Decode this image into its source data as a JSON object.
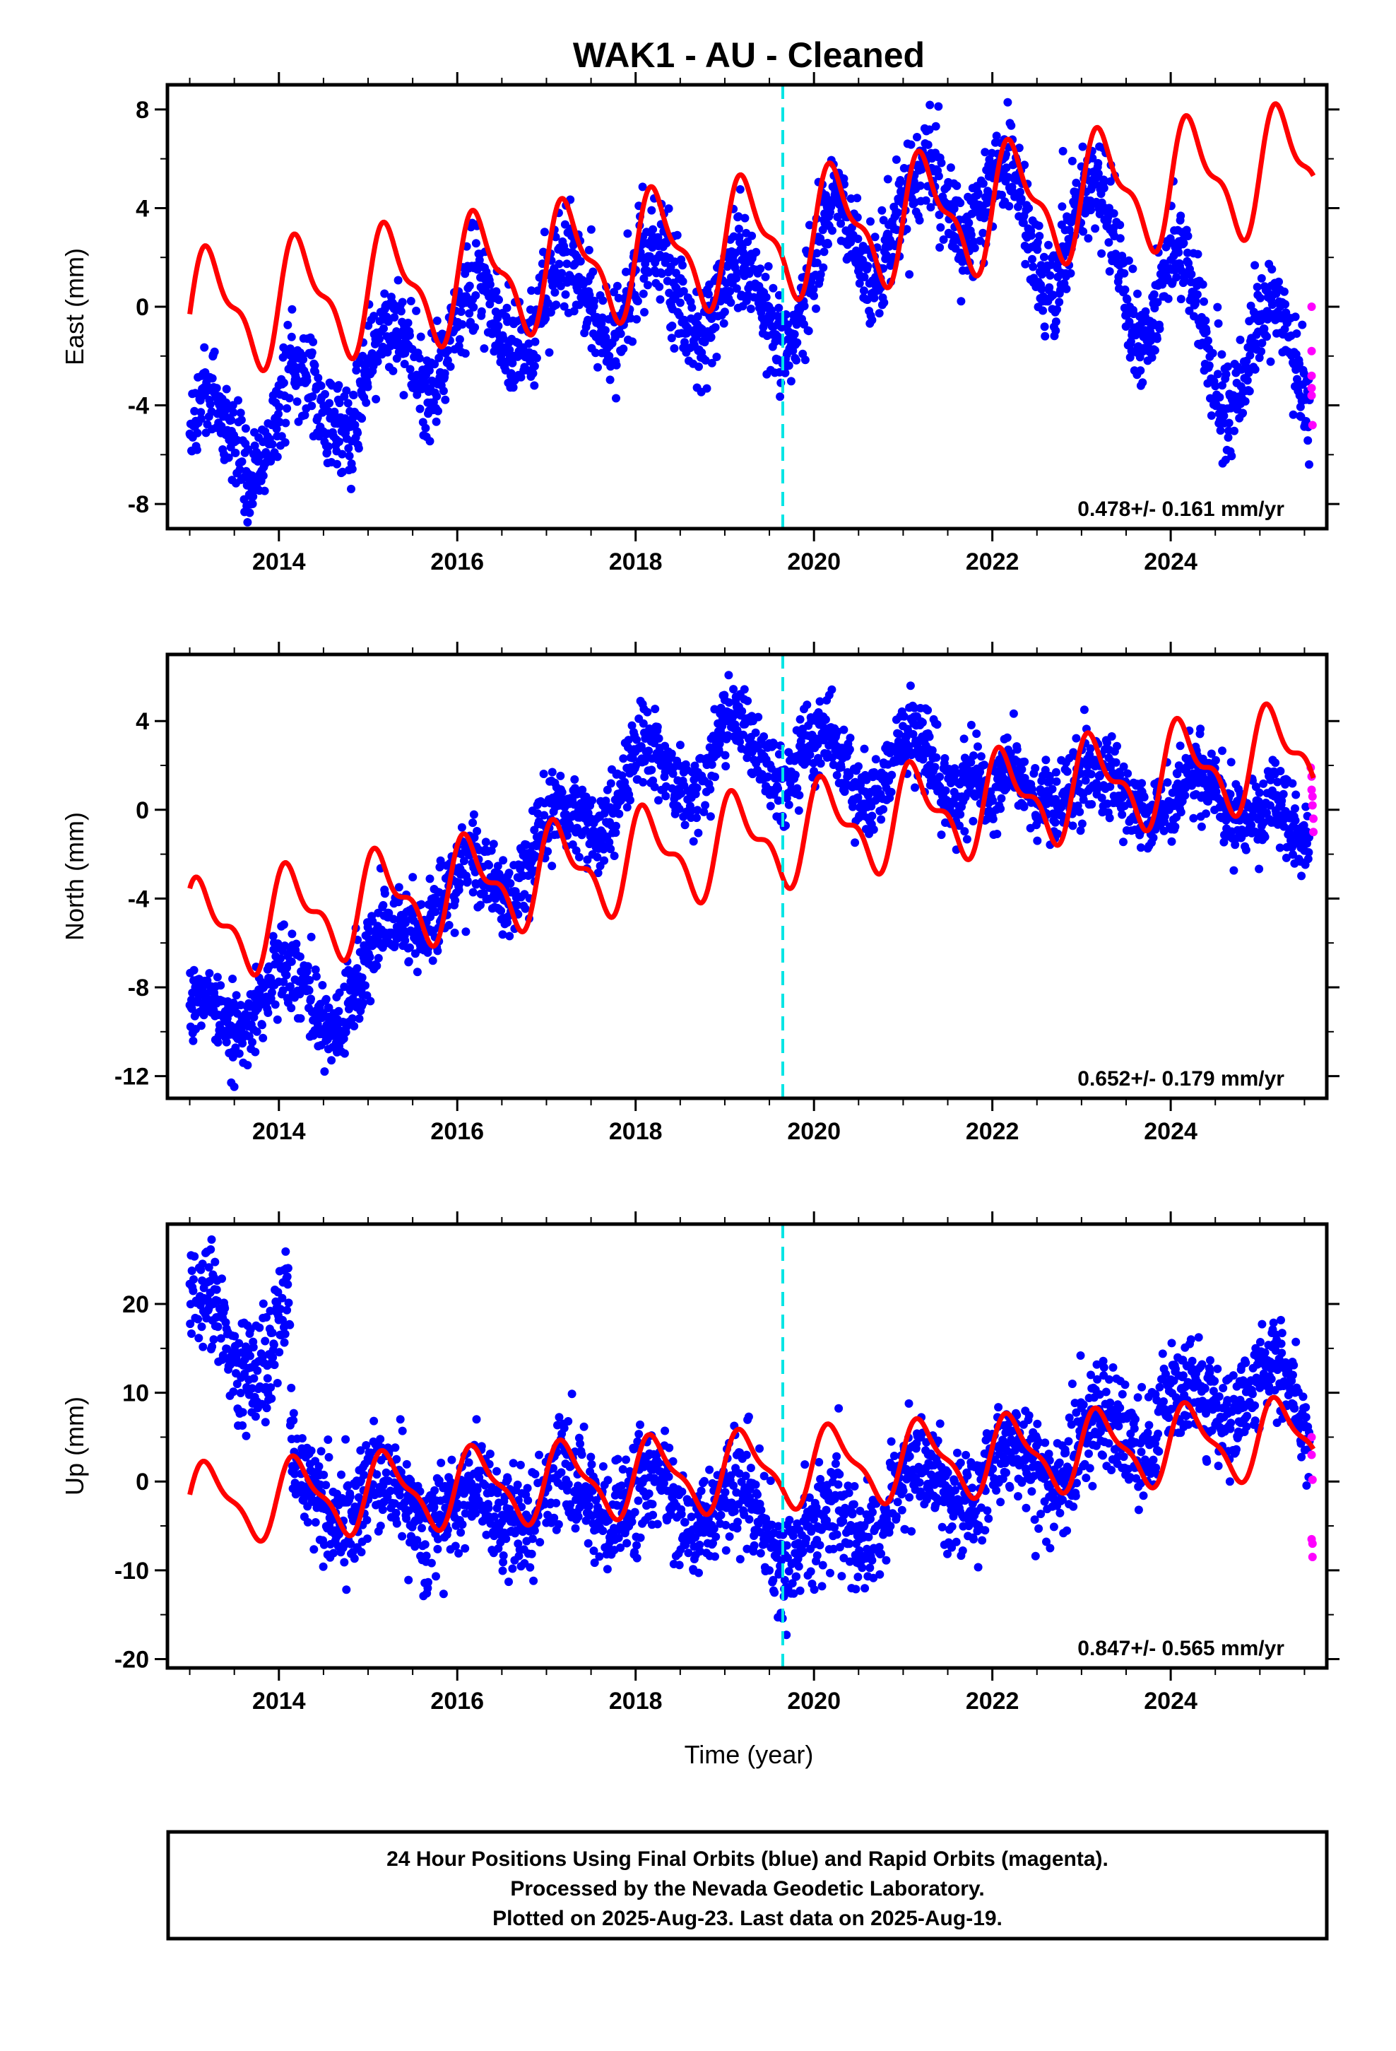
{
  "title": "WAK1  - AU - Cleaned",
  "footer": {
    "line1": "24 Hour Positions Using Final Orbits (blue) and Rapid Orbits (magenta).",
    "line2": "Processed by the Nevada Geodetic Laboratory.",
    "line3": "Plotted on 2025-Aug-23. Last data on 2025-Aug-19."
  },
  "colors": {
    "final": "#0000ff",
    "rapid": "#ff00ff",
    "model": "#ff0000",
    "event": "#00e5e5"
  },
  "chart_data": [
    {
      "type": "scatter",
      "component": "east",
      "ylabel": "East (mm)",
      "xlim": [
        2012.75,
        2025.75
      ],
      "ylim": [
        -9,
        9
      ],
      "yticks": [
        -8,
        -4,
        0,
        4,
        8
      ],
      "xticks": [
        2014,
        2016,
        2018,
        2020,
        2022,
        2024
      ],
      "x_tick_labels": [
        "2014",
        "2016",
        "2018",
        "2020",
        "2022",
        "2024"
      ],
      "y_tick_labels": [
        "-8",
        "-4",
        "0",
        "4",
        "8"
      ],
      "rate": "0.478+/- 0.161 mm/yr",
      "event_line": 2019.65,
      "model": {
        "offset": -0.3,
        "trend": 0.48,
        "annual": 2.2,
        "semiannual": 0.9,
        "phase": 0.0,
        "t0": 2013.0,
        "x_start": 2013.0,
        "x_end": 2025.6
      },
      "trend_nodes": [
        [
          2013.0,
          -5.5
        ],
        [
          2013.5,
          -5.5
        ],
        [
          2014.5,
          -4.0
        ],
        [
          2016.0,
          -0.8
        ],
        [
          2018.0,
          0.8
        ],
        [
          2019.0,
          0.5
        ],
        [
          2019.6,
          -0.3
        ],
        [
          2020.2,
          2.3
        ],
        [
          2021.0,
          3.8
        ],
        [
          2022.0,
          4.8
        ],
        [
          2022.5,
          2.2
        ],
        [
          2023.0,
          4.2
        ],
        [
          2023.6,
          0.2
        ],
        [
          2024.0,
          1.6
        ],
        [
          2024.5,
          -2.8
        ],
        [
          2025.0,
          -1.0
        ],
        [
          2025.55,
          -3.5
        ]
      ],
      "seasonal_amp": 1.8,
      "noise": 1.0,
      "rapid_points": [
        [
          2025.58,
          -1.8
        ],
        [
          2025.58,
          -2.8
        ],
        [
          2025.58,
          -3.3
        ],
        [
          2025.58,
          -3.6
        ],
        [
          2025.58,
          0.0
        ],
        [
          2025.59,
          -4.8
        ]
      ]
    },
    {
      "type": "scatter",
      "component": "north",
      "ylabel": "North (mm)",
      "xlim": [
        2012.75,
        2025.75
      ],
      "ylim": [
        -13,
        7
      ],
      "yticks": [
        -12,
        -8,
        -4,
        0,
        4
      ],
      "xticks": [
        2014,
        2016,
        2018,
        2020,
        2022,
        2024
      ],
      "x_tick_labels": [
        "2014",
        "2016",
        "2018",
        "2020",
        "2022",
        "2024"
      ],
      "y_tick_labels": [
        "-12",
        "-8",
        "-4",
        "0",
        "4"
      ],
      "rate": "0.652+/- 0.179 mm/yr",
      "event_line": 2019.65,
      "model": {
        "offset": -5.5,
        "trend": 0.65,
        "annual": 1.9,
        "semiannual": 0.9,
        "phase": 0.62,
        "t0": 2013.0,
        "x_start": 2013.0,
        "x_end": 2025.6
      },
      "trend_nodes": [
        [
          2013.0,
          -10.0
        ],
        [
          2013.8,
          -8.0
        ],
        [
          2014.4,
          -8.5
        ],
        [
          2015.0,
          -8.0
        ],
        [
          2015.5,
          -4.0
        ],
        [
          2016.0,
          -4.0
        ],
        [
          2017.0,
          -1.5
        ],
        [
          2018.0,
          1.5
        ],
        [
          2019.0,
          2.5
        ],
        [
          2019.5,
          3.0
        ],
        [
          2020.0,
          2.0
        ],
        [
          2021.0,
          2.0
        ],
        [
          2021.8,
          2.0
        ],
        [
          2022.0,
          -0.5
        ],
        [
          2022.6,
          2.0
        ],
        [
          2023.0,
          0.0
        ],
        [
          2023.6,
          2.0
        ],
        [
          2024.0,
          -1.2
        ],
        [
          2024.5,
          2.5
        ],
        [
          2025.0,
          -1.5
        ],
        [
          2025.55,
          0.0
        ]
      ],
      "seasonal_amp": 1.5,
      "noise": 0.9,
      "rapid_points": [
        [
          2025.58,
          1.5
        ],
        [
          2025.58,
          0.9
        ],
        [
          2025.59,
          0.6
        ],
        [
          2025.59,
          0.2
        ],
        [
          2025.6,
          -0.4
        ],
        [
          2025.6,
          -1.0
        ],
        [
          2025.57,
          1.9
        ]
      ]
    },
    {
      "type": "scatter",
      "component": "up",
      "ylabel": "Up (mm)",
      "xlabel": "Time (year)",
      "xlim": [
        2012.75,
        2025.75
      ],
      "ylim": [
        -21,
        29
      ],
      "yticks": [
        -20,
        -10,
        0,
        10,
        20
      ],
      "xticks": [
        2014,
        2016,
        2018,
        2020,
        2022,
        2024
      ],
      "x_tick_labels": [
        "2014",
        "2016",
        "2018",
        "2020",
        "2022",
        "2024"
      ],
      "y_tick_labels": [
        "-20",
        "-10",
        "0",
        "10",
        "20"
      ],
      "rate": "0.847+/- 0.565 mm/yr",
      "event_line": 2019.65,
      "model": {
        "offset": -2.5,
        "trend": 0.6,
        "annual": 4.0,
        "semiannual": 1.4,
        "phase": 0.15,
        "t0": 2013.0,
        "x_start": 2013.0,
        "x_end": 2025.6
      },
      "trend_nodes": [
        [
          2013.0,
          20.0
        ],
        [
          2013.4,
          16.0
        ],
        [
          2013.9,
          14.0
        ],
        [
          2014.1,
          20.0
        ],
        [
          2014.15,
          -1.0
        ],
        [
          2016.0,
          -3.0
        ],
        [
          2018.0,
          -2.0
        ],
        [
          2019.0,
          -3.0
        ],
        [
          2019.7,
          -6.0
        ],
        [
          2020.3,
          -6.0
        ],
        [
          2021.0,
          -1.0
        ],
        [
          2022.0,
          0.0
        ],
        [
          2023.0,
          4.0
        ],
        [
          2024.0,
          8.0
        ],
        [
          2025.0,
          11.0
        ],
        [
          2025.55,
          7.0
        ]
      ],
      "seasonal_amp": 3.0,
      "noise": 3.0,
      "rapid_points": [
        [
          2025.58,
          5.0
        ],
        [
          2025.58,
          3.0
        ],
        [
          2025.59,
          0.2
        ],
        [
          2025.58,
          -6.5
        ],
        [
          2025.59,
          -7.0
        ],
        [
          2025.59,
          -8.5
        ]
      ]
    }
  ]
}
